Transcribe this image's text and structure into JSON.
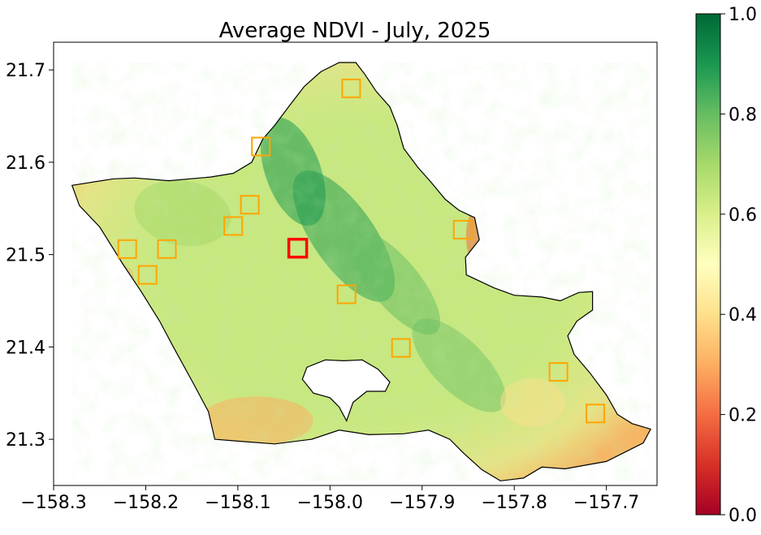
{
  "chart_data": {
    "type": "heatmap",
    "title": "Average NDVI - July, 2025",
    "xlabel": "",
    "ylabel": "",
    "xlim": [
      -158.3,
      -157.645
    ],
    "ylim": [
      21.25,
      21.73
    ],
    "x_ticks": [
      -158.3,
      -158.2,
      -158.1,
      -158.0,
      -157.9,
      -157.8,
      -157.7
    ],
    "x_tick_labels": [
      "−158.3",
      "−158.2",
      "−158.1",
      "−158.0",
      "−157.9",
      "−157.8",
      "−157.7"
    ],
    "y_ticks": [
      21.3,
      21.4,
      21.5,
      21.6,
      21.7
    ],
    "y_tick_labels": [
      "21.3",
      "21.4",
      "21.5",
      "21.6",
      "21.7"
    ],
    "grid": false,
    "colorbar": {
      "colormap": "RdYlGn",
      "vmin": 0.0,
      "vmax": 1.0,
      "ticks": [
        0.0,
        0.2,
        0.4,
        0.6,
        0.8,
        1.0
      ],
      "tick_labels": [
        "0.0",
        "0.2",
        "0.4",
        "0.6",
        "0.8",
        "1.0"
      ],
      "stops": [
        "#a50026",
        "#d73027",
        "#f46d43",
        "#fdae61",
        "#fee08b",
        "#ffffbf",
        "#d9ef8b",
        "#a6d96a",
        "#66bd63",
        "#1a9850",
        "#006837"
      ]
    },
    "markers": [
      {
        "lon": -157.977,
        "lat": 21.68,
        "color": "#ffa500",
        "highlight": false
      },
      {
        "lon": -158.075,
        "lat": 21.617,
        "color": "#ffa500",
        "highlight": false
      },
      {
        "lon": -158.087,
        "lat": 21.554,
        "color": "#ffa500",
        "highlight": false
      },
      {
        "lon": -158.105,
        "lat": 21.531,
        "color": "#ffa500",
        "highlight": false
      },
      {
        "lon": -158.22,
        "lat": 21.506,
        "color": "#ffa500",
        "highlight": false
      },
      {
        "lon": -158.177,
        "lat": 21.506,
        "color": "#ffa500",
        "highlight": false
      },
      {
        "lon": -158.198,
        "lat": 21.478,
        "color": "#ffa500",
        "highlight": false
      },
      {
        "lon": -158.035,
        "lat": 21.507,
        "color": "#ff0000",
        "highlight": true
      },
      {
        "lon": -157.982,
        "lat": 21.457,
        "color": "#ffa500",
        "highlight": false
      },
      {
        "lon": -157.856,
        "lat": 21.527,
        "color": "#ffa500",
        "highlight": false
      },
      {
        "lon": -157.923,
        "lat": 21.399,
        "color": "#ffa500",
        "highlight": false
      },
      {
        "lon": -157.752,
        "lat": 21.373,
        "color": "#ffa500",
        "highlight": false
      },
      {
        "lon": -157.712,
        "lat": 21.328,
        "color": "#ffa500",
        "highlight": false
      }
    ],
    "island_outline": [
      [
        -158.28,
        21.575
      ],
      [
        -158.235,
        21.582
      ],
      [
        -158.212,
        21.583
      ],
      [
        -158.175,
        21.58
      ],
      [
        -158.13,
        21.584
      ],
      [
        -158.105,
        21.588
      ],
      [
        -158.085,
        21.6
      ],
      [
        -158.073,
        21.625
      ],
      [
        -158.06,
        21.64
      ],
      [
        -158.045,
        21.66
      ],
      [
        -158.028,
        21.682
      ],
      [
        -158.01,
        21.698
      ],
      [
        -157.99,
        21.708
      ],
      [
        -157.972,
        21.708
      ],
      [
        -157.962,
        21.695
      ],
      [
        -157.95,
        21.677
      ],
      [
        -157.935,
        21.66
      ],
      [
        -157.927,
        21.64
      ],
      [
        -157.92,
        21.615
      ],
      [
        -157.905,
        21.595
      ],
      [
        -157.89,
        21.578
      ],
      [
        -157.875,
        21.56
      ],
      [
        -157.86,
        21.548
      ],
      [
        -157.843,
        21.54
      ],
      [
        -157.838,
        21.516
      ],
      [
        -157.853,
        21.497
      ],
      [
        -157.852,
        21.478
      ],
      [
        -157.822,
        21.464
      ],
      [
        -157.8,
        21.456
      ],
      [
        -157.77,
        21.454
      ],
      [
        -157.75,
        21.45
      ],
      [
        -157.73,
        21.459
      ],
      [
        -157.715,
        21.46
      ],
      [
        -157.715,
        21.44
      ],
      [
        -157.732,
        21.428
      ],
      [
        -157.742,
        21.412
      ],
      [
        -157.735,
        21.392
      ],
      [
        -157.718,
        21.372
      ],
      [
        -157.7,
        21.348
      ],
      [
        -157.688,
        21.327
      ],
      [
        -157.672,
        21.317
      ],
      [
        -157.652,
        21.311
      ],
      [
        -157.66,
        21.296
      ],
      [
        -157.7,
        21.276
      ],
      [
        -157.745,
        21.268
      ],
      [
        -157.77,
        21.27
      ],
      [
        -157.79,
        21.258
      ],
      [
        -157.815,
        21.255
      ],
      [
        -157.835,
        21.267
      ],
      [
        -157.855,
        21.285
      ],
      [
        -157.87,
        21.3
      ],
      [
        -157.893,
        21.31
      ],
      [
        -157.92,
        21.306
      ],
      [
        -157.958,
        21.305
      ],
      [
        -157.99,
        21.31
      ],
      [
        -158.02,
        21.3
      ],
      [
        -158.06,
        21.295
      ],
      [
        -158.1,
        21.298
      ],
      [
        -158.125,
        21.3
      ],
      [
        -158.132,
        21.33
      ],
      [
        -158.148,
        21.36
      ],
      [
        -158.17,
        21.4
      ],
      [
        -158.185,
        21.428
      ],
      [
        -158.205,
        21.46
      ],
      [
        -158.225,
        21.49
      ],
      [
        -158.25,
        21.53
      ],
      [
        -158.272,
        21.553
      ]
    ],
    "pearl_harbor_outline": [
      [
        -157.985,
        21.385
      ],
      [
        -157.965,
        21.386
      ],
      [
        -157.948,
        21.376
      ],
      [
        -157.935,
        21.362
      ],
      [
        -157.94,
        21.352
      ],
      [
        -157.96,
        21.352
      ],
      [
        -157.975,
        21.34
      ],
      [
        -157.982,
        21.32
      ],
      [
        -157.99,
        21.335
      ],
      [
        -158.0,
        21.345
      ],
      [
        -158.018,
        21.35
      ],
      [
        -158.03,
        21.365
      ],
      [
        -158.025,
        21.378
      ],
      [
        -158.005,
        21.386
      ]
    ]
  }
}
